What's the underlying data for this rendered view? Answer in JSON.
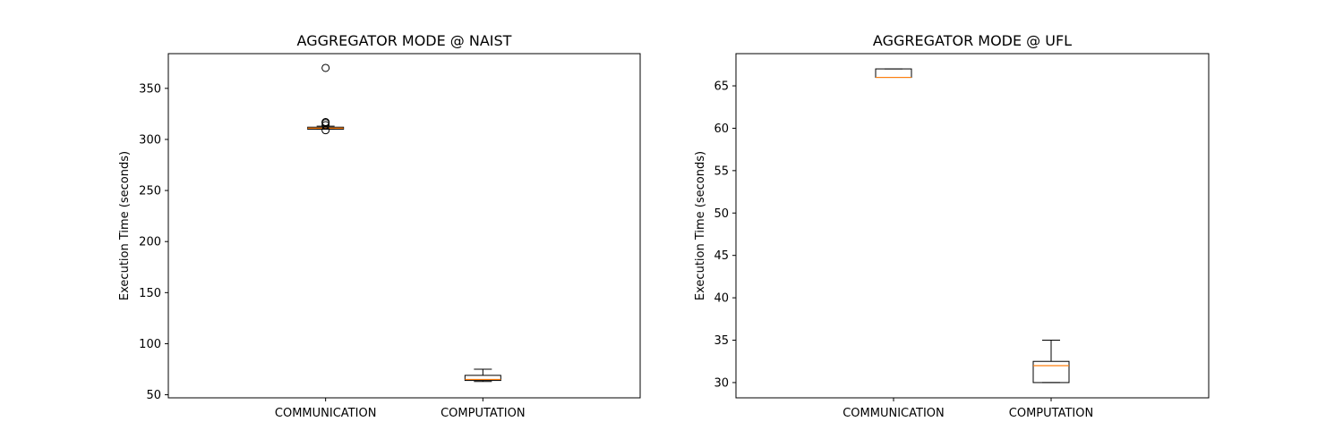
{
  "chart_data": [
    {
      "type": "box",
      "title": "AGGREGATOR MODE @ NAIST",
      "xlabel": "",
      "ylabel": "Execution Time (seconds)",
      "categories": [
        "COMMUNICATION",
        "COMPUTATION"
      ],
      "ylim": [
        47,
        384
      ],
      "yticks": [
        50,
        100,
        150,
        200,
        250,
        300,
        350
      ],
      "boxes": [
        {
          "category": "COMMUNICATION",
          "whisker_low": 310,
          "q1": 310,
          "median": 311,
          "q3": 312,
          "whisker_high": 313,
          "fliers": [
            370,
            317,
            316,
            314,
            309
          ]
        },
        {
          "category": "COMPUTATION",
          "whisker_low": 63,
          "q1": 64,
          "median": 65,
          "q3": 69,
          "whisker_high": 75,
          "fliers": []
        }
      ]
    },
    {
      "type": "box",
      "title": "AGGREGATOR MODE @ UFL",
      "xlabel": "",
      "ylabel": "Execution Time (seconds)",
      "categories": [
        "COMMUNICATION",
        "COMPUTATION"
      ],
      "ylim": [
        28.2,
        68.8
      ],
      "yticks": [
        30,
        35,
        40,
        45,
        50,
        55,
        60,
        65
      ],
      "boxes": [
        {
          "category": "COMMUNICATION",
          "whisker_low": 66,
          "q1": 66,
          "median": 66,
          "q3": 67,
          "whisker_high": 67,
          "fliers": []
        },
        {
          "category": "COMPUTATION",
          "whisker_low": 30,
          "q1": 30,
          "median": 32,
          "q3": 32.5,
          "whisker_high": 35,
          "fliers": []
        }
      ]
    }
  ],
  "colors": {
    "box": "#000000",
    "median": "#ff7f0e",
    "flier": "#000000"
  }
}
